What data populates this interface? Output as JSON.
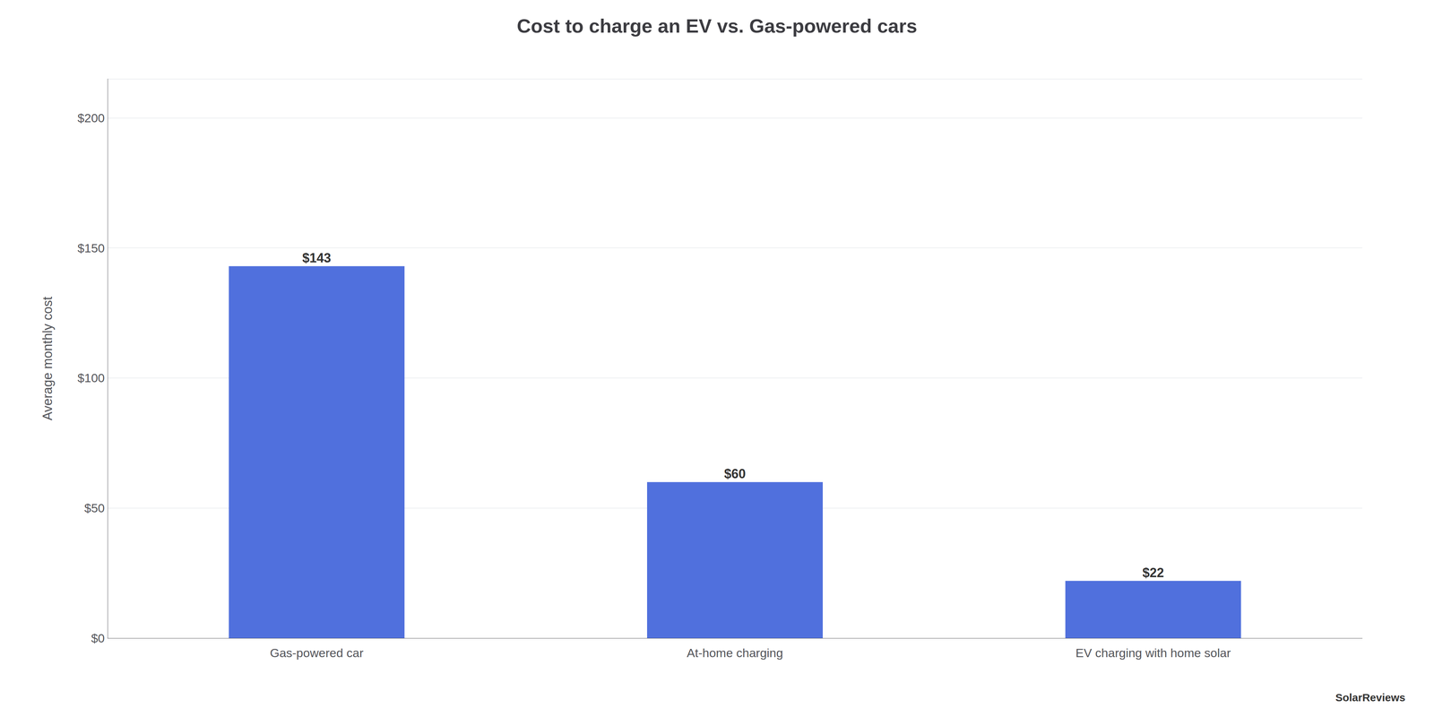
{
  "chart_data": {
    "type": "bar",
    "title": "Cost to charge an EV vs. Gas-powered cars",
    "ylabel": "Average monthly cost",
    "categories": [
      "Gas-powered car",
      "At-home charging",
      "EV charging with home solar"
    ],
    "values": [
      143,
      60,
      22
    ],
    "value_labels": [
      "$143",
      "$60",
      "$22"
    ],
    "data_labels": true,
    "ylim": [
      0,
      215
    ],
    "yticks": [
      {
        "value": 0,
        "label": "$0"
      },
      {
        "value": 50,
        "label": "$50"
      },
      {
        "value": 100,
        "label": "$100"
      },
      {
        "value": 150,
        "label": "$150"
      },
      {
        "value": 200,
        "label": "$200"
      }
    ],
    "grid": true,
    "annotations": [
      "SolarReviews"
    ]
  }
}
